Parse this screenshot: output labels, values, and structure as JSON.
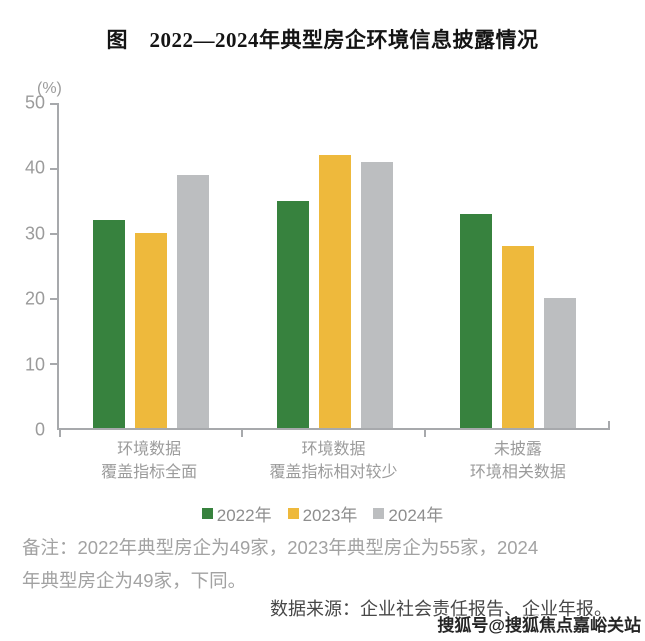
{
  "chart_data": {
    "type": "bar",
    "title": "图　2022—2024年典型房企环境信息披露情况",
    "unit_label": "(%)",
    "categories": [
      [
        "环境数据",
        "覆盖指标全面"
      ],
      [
        "环境数据",
        "覆盖指标相对较少"
      ],
      [
        "未披露",
        "环境相关数据"
      ]
    ],
    "series": [
      {
        "name": "2022年",
        "color": "#37823E",
        "values": [
          32,
          35,
          33
        ]
      },
      {
        "name": "2023年",
        "color": "#EEB93C",
        "values": [
          30,
          42,
          28
        ]
      },
      {
        "name": "2024年",
        "color": "#BCBEC0",
        "values": [
          39,
          41,
          20
        ]
      }
    ],
    "ylim": [
      0,
      50
    ],
    "yticks": [
      0,
      10,
      20,
      30,
      40,
      50
    ],
    "grid": false,
    "legend_position": "bottom",
    "axis_color": "#A7A9AC"
  },
  "note": {
    "lines": [
      "备注：2022年典型房企为49家，2023年典型房企为55家，2024",
      "年典型房企为49家，下同。"
    ]
  },
  "source": "数据来源：企业社会责任报告、企业年报。",
  "watermark": "搜狐号@搜狐焦点嘉峪关站"
}
